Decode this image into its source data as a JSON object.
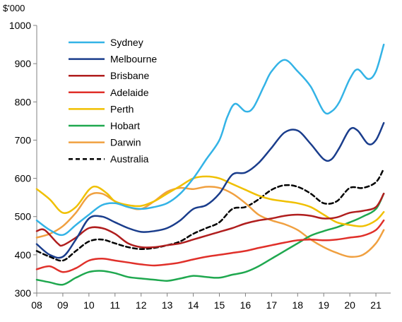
{
  "chart_data": {
    "type": "line",
    "title": "",
    "ylabel": "$'000",
    "xlabel": "",
    "ylim": [
      300,
      1000
    ],
    "xlim": [
      2008,
      2021.3
    ],
    "grid": false,
    "legend_position": "top-left",
    "x_ticks": [
      2008,
      2009,
      2010,
      2011,
      2012,
      2013,
      2014,
      2015,
      2016,
      2017,
      2018,
      2019,
      2020,
      2021
    ],
    "x_tick_labels": [
      "08",
      "09",
      "10",
      "11",
      "12",
      "13",
      "14",
      "15",
      "16",
      "17",
      "18",
      "19",
      "20",
      "21"
    ],
    "y_ticks": [
      300,
      400,
      500,
      600,
      700,
      800,
      900,
      1000
    ],
    "y_tick_labels": [
      "300",
      "400",
      "500",
      "600",
      "700",
      "800",
      "900",
      "1000"
    ],
    "series": [
      {
        "name": "Sydney",
        "color": "#33b3e6",
        "dash": "solid",
        "points": [
          [
            2008,
            490
          ],
          [
            2008.5,
            465
          ],
          [
            2009,
            452
          ],
          [
            2009.5,
            478
          ],
          [
            2010,
            505
          ],
          [
            2010.5,
            530
          ],
          [
            2011,
            535
          ],
          [
            2011.5,
            525
          ],
          [
            2012,
            520
          ],
          [
            2012.5,
            525
          ],
          [
            2013,
            535
          ],
          [
            2013.5,
            560
          ],
          [
            2014,
            600
          ],
          [
            2014.5,
            650
          ],
          [
            2015,
            700
          ],
          [
            2015.3,
            760
          ],
          [
            2015.6,
            795
          ],
          [
            2016,
            775
          ],
          [
            2016.3,
            785
          ],
          [
            2016.7,
            840
          ],
          [
            2017,
            880
          ],
          [
            2017.5,
            910
          ],
          [
            2018,
            880
          ],
          [
            2018.5,
            840
          ],
          [
            2019,
            775
          ],
          [
            2019.3,
            775
          ],
          [
            2019.6,
            800
          ],
          [
            2020,
            860
          ],
          [
            2020.3,
            885
          ],
          [
            2020.7,
            860
          ],
          [
            2021,
            880
          ],
          [
            2021.3,
            950
          ]
        ]
      },
      {
        "name": "Melbourne",
        "color": "#1a3d8c",
        "dash": "solid",
        "points": [
          [
            2008,
            428
          ],
          [
            2008.5,
            400
          ],
          [
            2009,
            395
          ],
          [
            2009.5,
            440
          ],
          [
            2010,
            495
          ],
          [
            2010.5,
            500
          ],
          [
            2011,
            485
          ],
          [
            2011.5,
            470
          ],
          [
            2012,
            460
          ],
          [
            2012.5,
            462
          ],
          [
            2013,
            470
          ],
          [
            2013.5,
            490
          ],
          [
            2014,
            520
          ],
          [
            2014.5,
            530
          ],
          [
            2015,
            560
          ],
          [
            2015.5,
            610
          ],
          [
            2016,
            615
          ],
          [
            2016.5,
            640
          ],
          [
            2017,
            680
          ],
          [
            2017.5,
            720
          ],
          [
            2018,
            725
          ],
          [
            2018.5,
            690
          ],
          [
            2019,
            650
          ],
          [
            2019.3,
            650
          ],
          [
            2019.6,
            680
          ],
          [
            2020,
            728
          ],
          [
            2020.3,
            725
          ],
          [
            2020.7,
            690
          ],
          [
            2021,
            700
          ],
          [
            2021.3,
            745
          ]
        ]
      },
      {
        "name": "Brisbane",
        "color": "#b01e1e",
        "dash": "solid",
        "points": [
          [
            2008,
            462
          ],
          [
            2008.3,
            465
          ],
          [
            2008.8,
            430
          ],
          [
            2009,
            425
          ],
          [
            2009.5,
            445
          ],
          [
            2010,
            470
          ],
          [
            2010.5,
            470
          ],
          [
            2011,
            455
          ],
          [
            2011.5,
            430
          ],
          [
            2012,
            420
          ],
          [
            2012.5,
            420
          ],
          [
            2013,
            425
          ],
          [
            2013.5,
            430
          ],
          [
            2014,
            440
          ],
          [
            2014.5,
            450
          ],
          [
            2015,
            460
          ],
          [
            2015.5,
            470
          ],
          [
            2016,
            482
          ],
          [
            2016.5,
            490
          ],
          [
            2017,
            495
          ],
          [
            2017.5,
            502
          ],
          [
            2018,
            505
          ],
          [
            2018.5,
            502
          ],
          [
            2019,
            495
          ],
          [
            2019.5,
            498
          ],
          [
            2020,
            510
          ],
          [
            2020.5,
            515
          ],
          [
            2021,
            525
          ],
          [
            2021.3,
            560
          ]
        ]
      },
      {
        "name": "Adelaide",
        "color": "#e0302a",
        "dash": "solid",
        "points": [
          [
            2008,
            362
          ],
          [
            2008.5,
            370
          ],
          [
            2009,
            355
          ],
          [
            2009.5,
            365
          ],
          [
            2010,
            385
          ],
          [
            2010.5,
            390
          ],
          [
            2011,
            385
          ],
          [
            2011.5,
            380
          ],
          [
            2012,
            375
          ],
          [
            2012.5,
            372
          ],
          [
            2013,
            375
          ],
          [
            2013.5,
            380
          ],
          [
            2014,
            388
          ],
          [
            2014.5,
            395
          ],
          [
            2015,
            400
          ],
          [
            2015.5,
            405
          ],
          [
            2016,
            410
          ],
          [
            2016.5,
            418
          ],
          [
            2017,
            425
          ],
          [
            2017.5,
            432
          ],
          [
            2018,
            438
          ],
          [
            2018.5,
            440
          ],
          [
            2019,
            438
          ],
          [
            2019.5,
            440
          ],
          [
            2020,
            445
          ],
          [
            2020.5,
            450
          ],
          [
            2021,
            465
          ],
          [
            2021.3,
            490
          ]
        ]
      },
      {
        "name": "Perth",
        "color": "#f0c000",
        "dash": "solid",
        "points": [
          [
            2008,
            572
          ],
          [
            2008.5,
            545
          ],
          [
            2009,
            510
          ],
          [
            2009.5,
            525
          ],
          [
            2010,
            570
          ],
          [
            2010.3,
            578
          ],
          [
            2010.7,
            560
          ],
          [
            2011,
            540
          ],
          [
            2011.5,
            530
          ],
          [
            2012,
            528
          ],
          [
            2012.5,
            540
          ],
          [
            2013,
            560
          ],
          [
            2013.5,
            580
          ],
          [
            2014,
            600
          ],
          [
            2014.5,
            605
          ],
          [
            2015,
            600
          ],
          [
            2015.5,
            585
          ],
          [
            2016,
            570
          ],
          [
            2016.5,
            555
          ],
          [
            2017,
            545
          ],
          [
            2017.5,
            540
          ],
          [
            2018,
            535
          ],
          [
            2018.5,
            525
          ],
          [
            2019,
            505
          ],
          [
            2019.5,
            485
          ],
          [
            2020,
            478
          ],
          [
            2020.5,
            475
          ],
          [
            2021,
            490
          ],
          [
            2021.3,
            512
          ]
        ]
      },
      {
        "name": "Hobart",
        "color": "#1fa84f",
        "dash": "solid",
        "points": [
          [
            2008,
            335
          ],
          [
            2008.5,
            328
          ],
          [
            2009,
            322
          ],
          [
            2009.5,
            340
          ],
          [
            2010,
            355
          ],
          [
            2010.5,
            358
          ],
          [
            2011,
            352
          ],
          [
            2011.5,
            342
          ],
          [
            2012,
            338
          ],
          [
            2012.5,
            335
          ],
          [
            2013,
            332
          ],
          [
            2013.5,
            338
          ],
          [
            2014,
            345
          ],
          [
            2014.5,
            342
          ],
          [
            2015,
            340
          ],
          [
            2015.5,
            348
          ],
          [
            2016,
            355
          ],
          [
            2016.5,
            370
          ],
          [
            2017,
            390
          ],
          [
            2017.5,
            410
          ],
          [
            2018,
            430
          ],
          [
            2018.5,
            450
          ],
          [
            2019,
            462
          ],
          [
            2019.5,
            472
          ],
          [
            2020,
            485
          ],
          [
            2020.5,
            500
          ],
          [
            2021,
            520
          ],
          [
            2021.3,
            560
          ]
        ]
      },
      {
        "name": "Darwin",
        "color": "#f0a040",
        "dash": "solid",
        "points": [
          [
            2008,
            445
          ],
          [
            2008.5,
            455
          ],
          [
            2009,
            475
          ],
          [
            2009.5,
            510
          ],
          [
            2010,
            555
          ],
          [
            2010.5,
            560
          ],
          [
            2011,
            540
          ],
          [
            2011.5,
            525
          ],
          [
            2012,
            520
          ],
          [
            2012.5,
            540
          ],
          [
            2013,
            565
          ],
          [
            2013.5,
            575
          ],
          [
            2014,
            572
          ],
          [
            2014.5,
            578
          ],
          [
            2015,
            575
          ],
          [
            2015.5,
            560
          ],
          [
            2016,
            535
          ],
          [
            2016.5,
            505
          ],
          [
            2017,
            490
          ],
          [
            2017.5,
            480
          ],
          [
            2018,
            465
          ],
          [
            2018.5,
            440
          ],
          [
            2019,
            420
          ],
          [
            2019.5,
            405
          ],
          [
            2020,
            395
          ],
          [
            2020.5,
            400
          ],
          [
            2021,
            430
          ],
          [
            2021.3,
            465
          ]
        ]
      },
      {
        "name": "Australia",
        "color": "#000000",
        "dash": "dashed",
        "points": [
          [
            2008,
            410
          ],
          [
            2008.5,
            395
          ],
          [
            2009,
            385
          ],
          [
            2009.5,
            410
          ],
          [
            2010,
            435
          ],
          [
            2010.5,
            440
          ],
          [
            2011,
            430
          ],
          [
            2011.5,
            420
          ],
          [
            2012,
            415
          ],
          [
            2012.5,
            418
          ],
          [
            2013,
            425
          ],
          [
            2013.5,
            435
          ],
          [
            2014,
            455
          ],
          [
            2014.5,
            470
          ],
          [
            2015,
            485
          ],
          [
            2015.5,
            520
          ],
          [
            2016,
            525
          ],
          [
            2016.5,
            545
          ],
          [
            2017,
            570
          ],
          [
            2017.5,
            582
          ],
          [
            2018,
            578
          ],
          [
            2018.5,
            560
          ],
          [
            2019,
            535
          ],
          [
            2019.5,
            540
          ],
          [
            2020,
            575
          ],
          [
            2020.5,
            575
          ],
          [
            2021,
            590
          ],
          [
            2021.3,
            625
          ]
        ]
      }
    ]
  }
}
